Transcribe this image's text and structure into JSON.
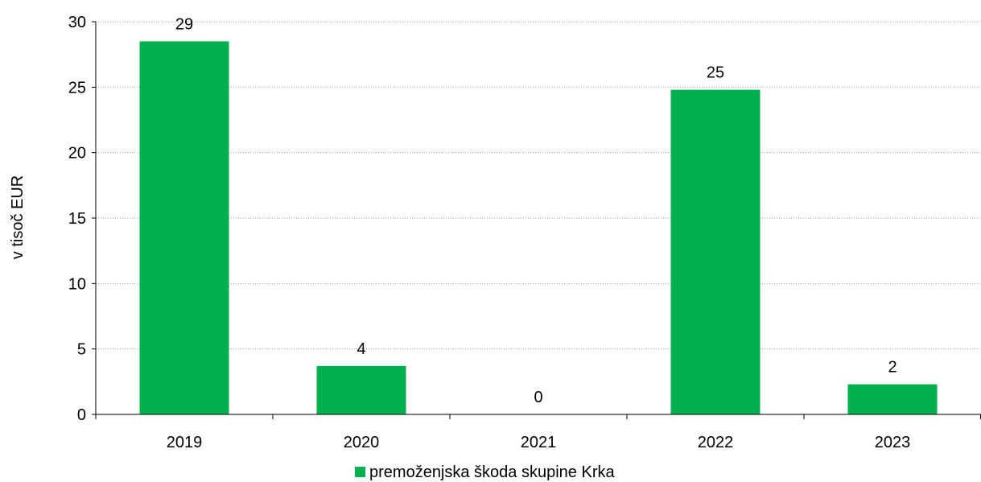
{
  "chart_data": {
    "type": "bar",
    "categories": [
      "2019",
      "2020",
      "2021",
      "2022",
      "2023"
    ],
    "series": [
      {
        "name": "premoženjska škoda skupine Krka",
        "values": [
          28.5,
          3.7,
          0,
          24.8,
          2.3
        ],
        "labels": [
          "29",
          "4",
          "0",
          "25",
          "2"
        ],
        "color": "#00b04f"
      }
    ],
    "ylabel": "v tisoč EUR",
    "xlabel": "",
    "ylim": [
      0,
      30
    ],
    "yticks": [
      0,
      5,
      10,
      15,
      20,
      25,
      30
    ],
    "grid": "horizontal-dotted",
    "legend_position": "bottom-center"
  }
}
